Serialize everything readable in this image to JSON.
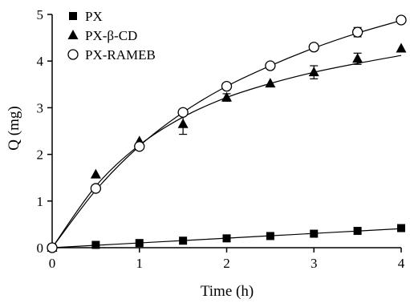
{
  "chart_data": {
    "type": "scatter",
    "xlabel": "Time (h)",
    "ylabel": "Q (mg)",
    "xlim": [
      0,
      4
    ],
    "ylim": [
      0,
      5
    ],
    "x_ticks": [
      0,
      1,
      2,
      3,
      4
    ],
    "y_ticks": [
      0,
      1,
      2,
      3,
      4,
      5
    ],
    "grid": false,
    "legend_position": "top-left",
    "series": [
      {
        "name": "PX",
        "marker": "square-filled",
        "x": [
          0,
          0.5,
          1,
          1.5,
          2,
          2.5,
          3,
          3.5,
          4
        ],
        "y": [
          0,
          0.06,
          0.1,
          0.15,
          0.2,
          0.25,
          0.3,
          0.36,
          0.42
        ],
        "fit": [
          0,
          0.051,
          0.102,
          0.153,
          0.204,
          0.255,
          0.306,
          0.357,
          0.408
        ]
      },
      {
        "name": "PX-β-CD",
        "marker": "triangle-filled",
        "x": [
          0,
          0.5,
          1,
          1.5,
          2,
          2.5,
          3,
          3.5,
          4
        ],
        "y": [
          0,
          1.57,
          2.28,
          2.65,
          3.22,
          3.52,
          3.76,
          4.05,
          4.27
        ],
        "err": [
          0,
          0.04,
          0.04,
          0.22,
          0.08,
          0.06,
          0.14,
          0.12,
          0.05
        ],
        "fit": [
          0,
          1.32,
          2.2,
          2.8,
          3.22,
          3.52,
          3.76,
          3.95,
          4.12
        ]
      },
      {
        "name": "PX-RAMEB",
        "marker": "circle-open",
        "x": [
          0,
          0.5,
          1,
          1.5,
          2,
          2.5,
          3,
          3.5,
          4
        ],
        "y": [
          0,
          1.27,
          2.17,
          2.9,
          3.46,
          3.9,
          4.3,
          4.62,
          4.88
        ],
        "err": [
          0,
          0.04,
          0.04,
          0.04,
          0.05,
          0.05,
          0.05,
          0.1,
          0.05
        ],
        "fit": [
          0,
          1.23,
          2.18,
          2.9,
          3.46,
          3.9,
          4.28,
          4.6,
          4.87
        ]
      }
    ]
  }
}
